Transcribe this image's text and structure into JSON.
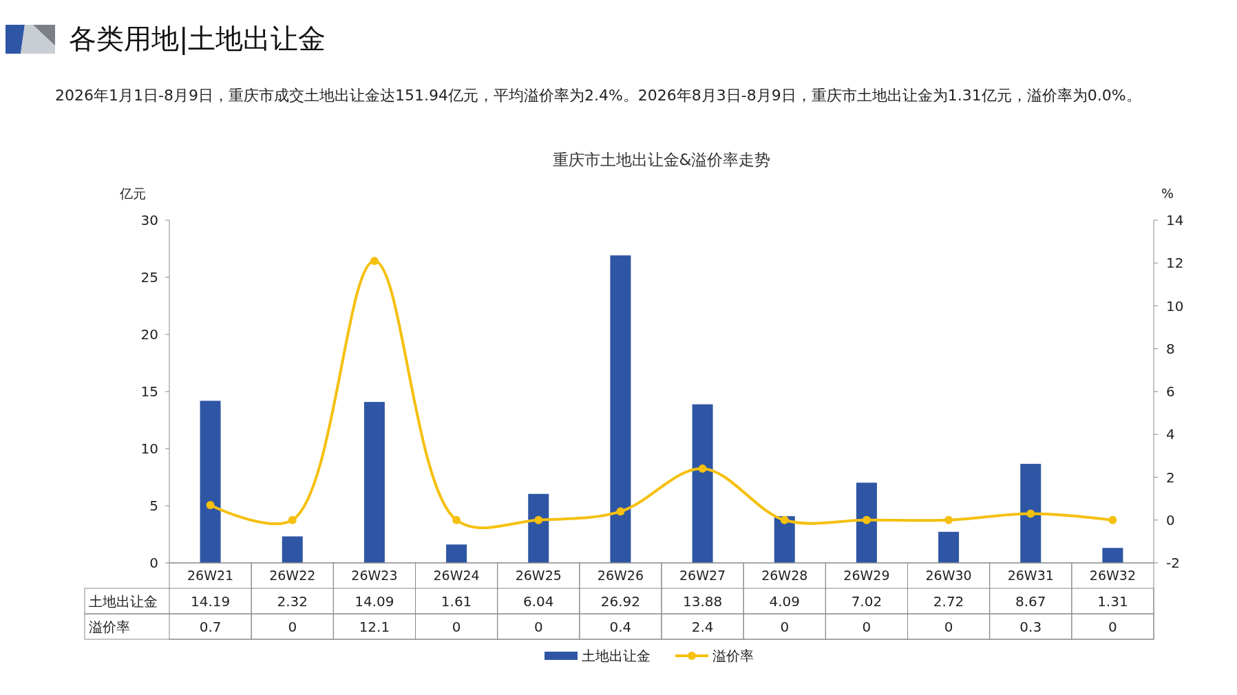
{
  "chart_data": {
    "type": "bar",
    "title": "各类用地|土地出让金",
    "subtitle": "重庆市土地出让金&溢价率走势",
    "annotations": [
      "2026年1月1日-8月9日，重庆市成交土地出让金达151.94亿元，平均溢价率为2.4%。2026年8月3日-8月9日，重庆市土地出让金为1.31亿元，溢价率为0.0%。"
    ],
    "ylabel": "亿元",
    "y2label": "%",
    "categories": [
      "26W21",
      "26W22",
      "26W23",
      "26W24",
      "26W25",
      "26W26",
      "26W27",
      "26W28",
      "26W29",
      "26W30",
      "26W31",
      "26W32"
    ],
    "series": [
      {
        "name": "土地出让金",
        "color": "#2e56a4",
        "values": [
          14.19,
          2.32,
          14.09,
          1.61,
          6.04,
          26.92,
          13.88,
          4.09,
          7.02,
          2.72,
          8.67,
          1.31
        ]
      },
      {
        "name": "溢价率",
        "type": "line",
        "axis": "y2",
        "color": "#f5c00f",
        "values": [
          0.7,
          0,
          12.1,
          0,
          0,
          0.4,
          2.4,
          0,
          0,
          0,
          0.3,
          0
        ]
      }
    ],
    "ylim": [
      0,
      30
    ],
    "yticks": [
      0,
      5,
      10,
      15,
      20,
      25,
      30
    ],
    "y2lim": [
      -2,
      14
    ],
    "y2ticks": [
      -2,
      0,
      2,
      4,
      6,
      8,
      10,
      12,
      14
    ],
    "data_labels": true,
    "legend": "bottom",
    "marker": "circle",
    "grid": false
  }
}
